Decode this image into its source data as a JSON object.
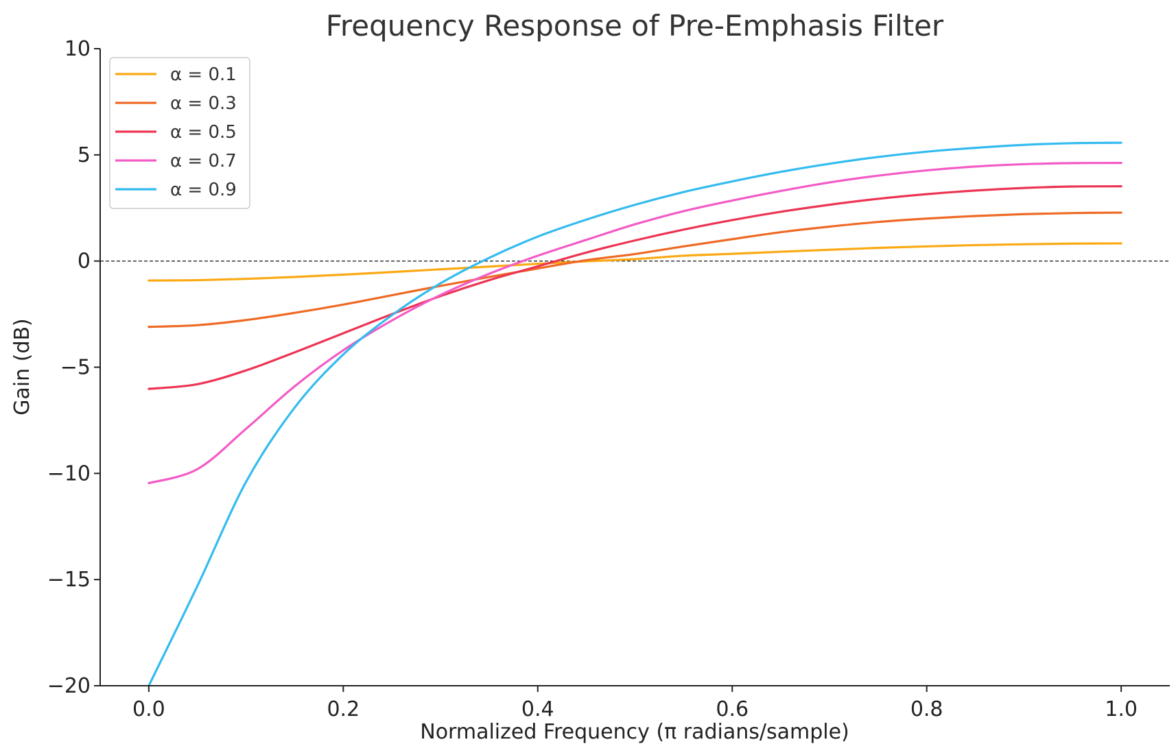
{
  "chart_data": {
    "type": "line",
    "title": "Frequency Response of Pre-Emphasis Filter",
    "xlabel": "Normalized Frequency (π radians/sample)",
    "ylabel": "Gain (dB)",
    "xlim": [
      -0.05,
      1.05
    ],
    "ylim": [
      -20,
      10
    ],
    "xticks": [
      0.0,
      0.2,
      0.4,
      0.6,
      0.8,
      1.0
    ],
    "xtick_labels": [
      "0.0",
      "0.2",
      "0.4",
      "0.6",
      "0.8",
      "1.0"
    ],
    "yticks": [
      10,
      5,
      0,
      -5,
      -10,
      -15,
      -20
    ],
    "ytick_labels": [
      "10",
      "5",
      "0",
      "−5",
      "−10",
      "−15",
      "−20"
    ],
    "grid": false,
    "reference_line": {
      "y": 0,
      "style": "dashed"
    },
    "legend_position": "upper-left",
    "x": [
      0.0,
      0.05,
      0.1,
      0.15,
      0.2,
      0.25,
      0.3,
      0.35,
      0.4,
      0.45,
      0.5,
      0.55,
      0.6,
      0.65,
      0.7,
      0.75,
      0.8,
      0.85,
      0.9,
      0.95,
      1.0
    ],
    "series": [
      {
        "name": "α = 0.1",
        "color": "#FBA914",
        "values": [
          -0.92,
          -0.9,
          -0.84,
          -0.75,
          -0.64,
          -0.52,
          -0.39,
          -0.26,
          -0.13,
          -0.01,
          0.09,
          0.25,
          0.34,
          0.44,
          0.53,
          0.62,
          0.69,
          0.75,
          0.79,
          0.82,
          0.83
        ]
      },
      {
        "name": "α = 0.3",
        "color": "#EE6A25",
        "values": [
          -3.1,
          -3.02,
          -2.78,
          -2.44,
          -2.05,
          -1.61,
          -1.17,
          -0.75,
          -0.35,
          0.04,
          0.33,
          0.69,
          1.03,
          1.36,
          1.62,
          1.84,
          2.0,
          2.12,
          2.21,
          2.26,
          2.28
        ]
      },
      {
        "name": "α = 0.5",
        "color": "#EC3453",
        "values": [
          -6.02,
          -5.8,
          -5.15,
          -4.3,
          -3.4,
          -2.5,
          -1.65,
          -0.9,
          -0.25,
          0.4,
          0.97,
          1.48,
          1.93,
          2.32,
          2.65,
          2.93,
          3.15,
          3.32,
          3.44,
          3.51,
          3.52
        ]
      },
      {
        "name": "α = 0.7",
        "color": "#F35BC6",
        "values": [
          -10.46,
          -9.8,
          -7.9,
          -5.9,
          -4.2,
          -2.8,
          -1.6,
          -0.6,
          0.25,
          1.0,
          1.73,
          2.35,
          2.85,
          3.3,
          3.7,
          4.02,
          4.27,
          4.45,
          4.56,
          4.61,
          4.62
        ]
      },
      {
        "name": "α = 0.9",
        "color": "#33BBEF",
        "values": [
          -20.0,
          -15.3,
          -10.4,
          -6.9,
          -4.4,
          -2.55,
          -1.05,
          0.15,
          1.15,
          1.95,
          2.65,
          3.25,
          3.75,
          4.2,
          4.58,
          4.9,
          5.15,
          5.33,
          5.47,
          5.55,
          5.57
        ]
      }
    ]
  }
}
